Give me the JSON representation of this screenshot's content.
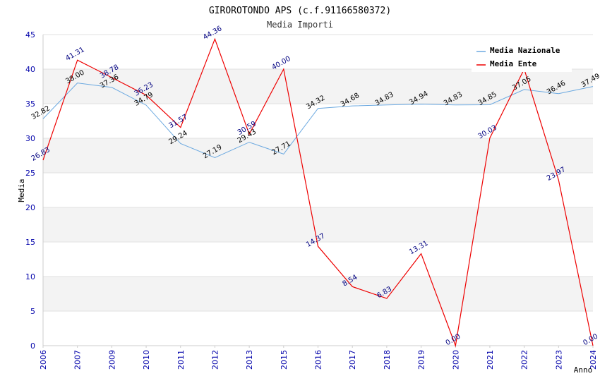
{
  "chart_data": {
    "type": "line",
    "title": "GIROROTONDO APS (c.f.91166580372)",
    "subtitle": "Media Importi",
    "xlabel": "Anno",
    "ylabel": "Media",
    "ylim": [
      0,
      45
    ],
    "yticks": [
      "0",
      "5",
      "10",
      "15",
      "20",
      "25",
      "30",
      "35",
      "40",
      "45"
    ],
    "categories": [
      "2006",
      "2007",
      "2009",
      "2010",
      "2011",
      "2012",
      "2013",
      "2015",
      "2016",
      "2017",
      "2018",
      "2019",
      "2020",
      "2021",
      "2022",
      "2023",
      "2024"
    ],
    "legend_position": "top-right",
    "series": [
      {
        "name": "Media Nazionale",
        "color": "#6aa8e0",
        "values": [
          32.82,
          38.0,
          37.36,
          34.79,
          29.24,
          27.19,
          29.43,
          27.71,
          34.32,
          34.68,
          34.83,
          34.94,
          34.83,
          34.85,
          37.05,
          36.46,
          37.49
        ],
        "labels": [
          "32.82",
          "38.00",
          "37.36",
          "34.79",
          "29.24",
          "27.19",
          "29.43",
          "27.71",
          "34.32",
          "34.68",
          "34.83",
          "34.94",
          "34.83",
          "34.85",
          "37.05",
          "36.46",
          "37.49"
        ]
      },
      {
        "name": "Media Ente",
        "color": "#ee0000",
        "values": [
          26.83,
          41.31,
          38.78,
          36.23,
          31.57,
          44.36,
          30.59,
          40.0,
          14.37,
          8.54,
          6.83,
          13.31,
          0.0,
          30.03,
          40.0,
          23.97,
          0.0
        ],
        "labels": [
          "26.83",
          "41.31",
          "38.78",
          "36.23",
          "31.57",
          "44.36",
          "30.59",
          "40.00",
          "14.37",
          "8.54",
          "6.83",
          "13.31",
          "0.00",
          "30.03",
          "",
          "23.97",
          "0.00"
        ]
      }
    ]
  }
}
